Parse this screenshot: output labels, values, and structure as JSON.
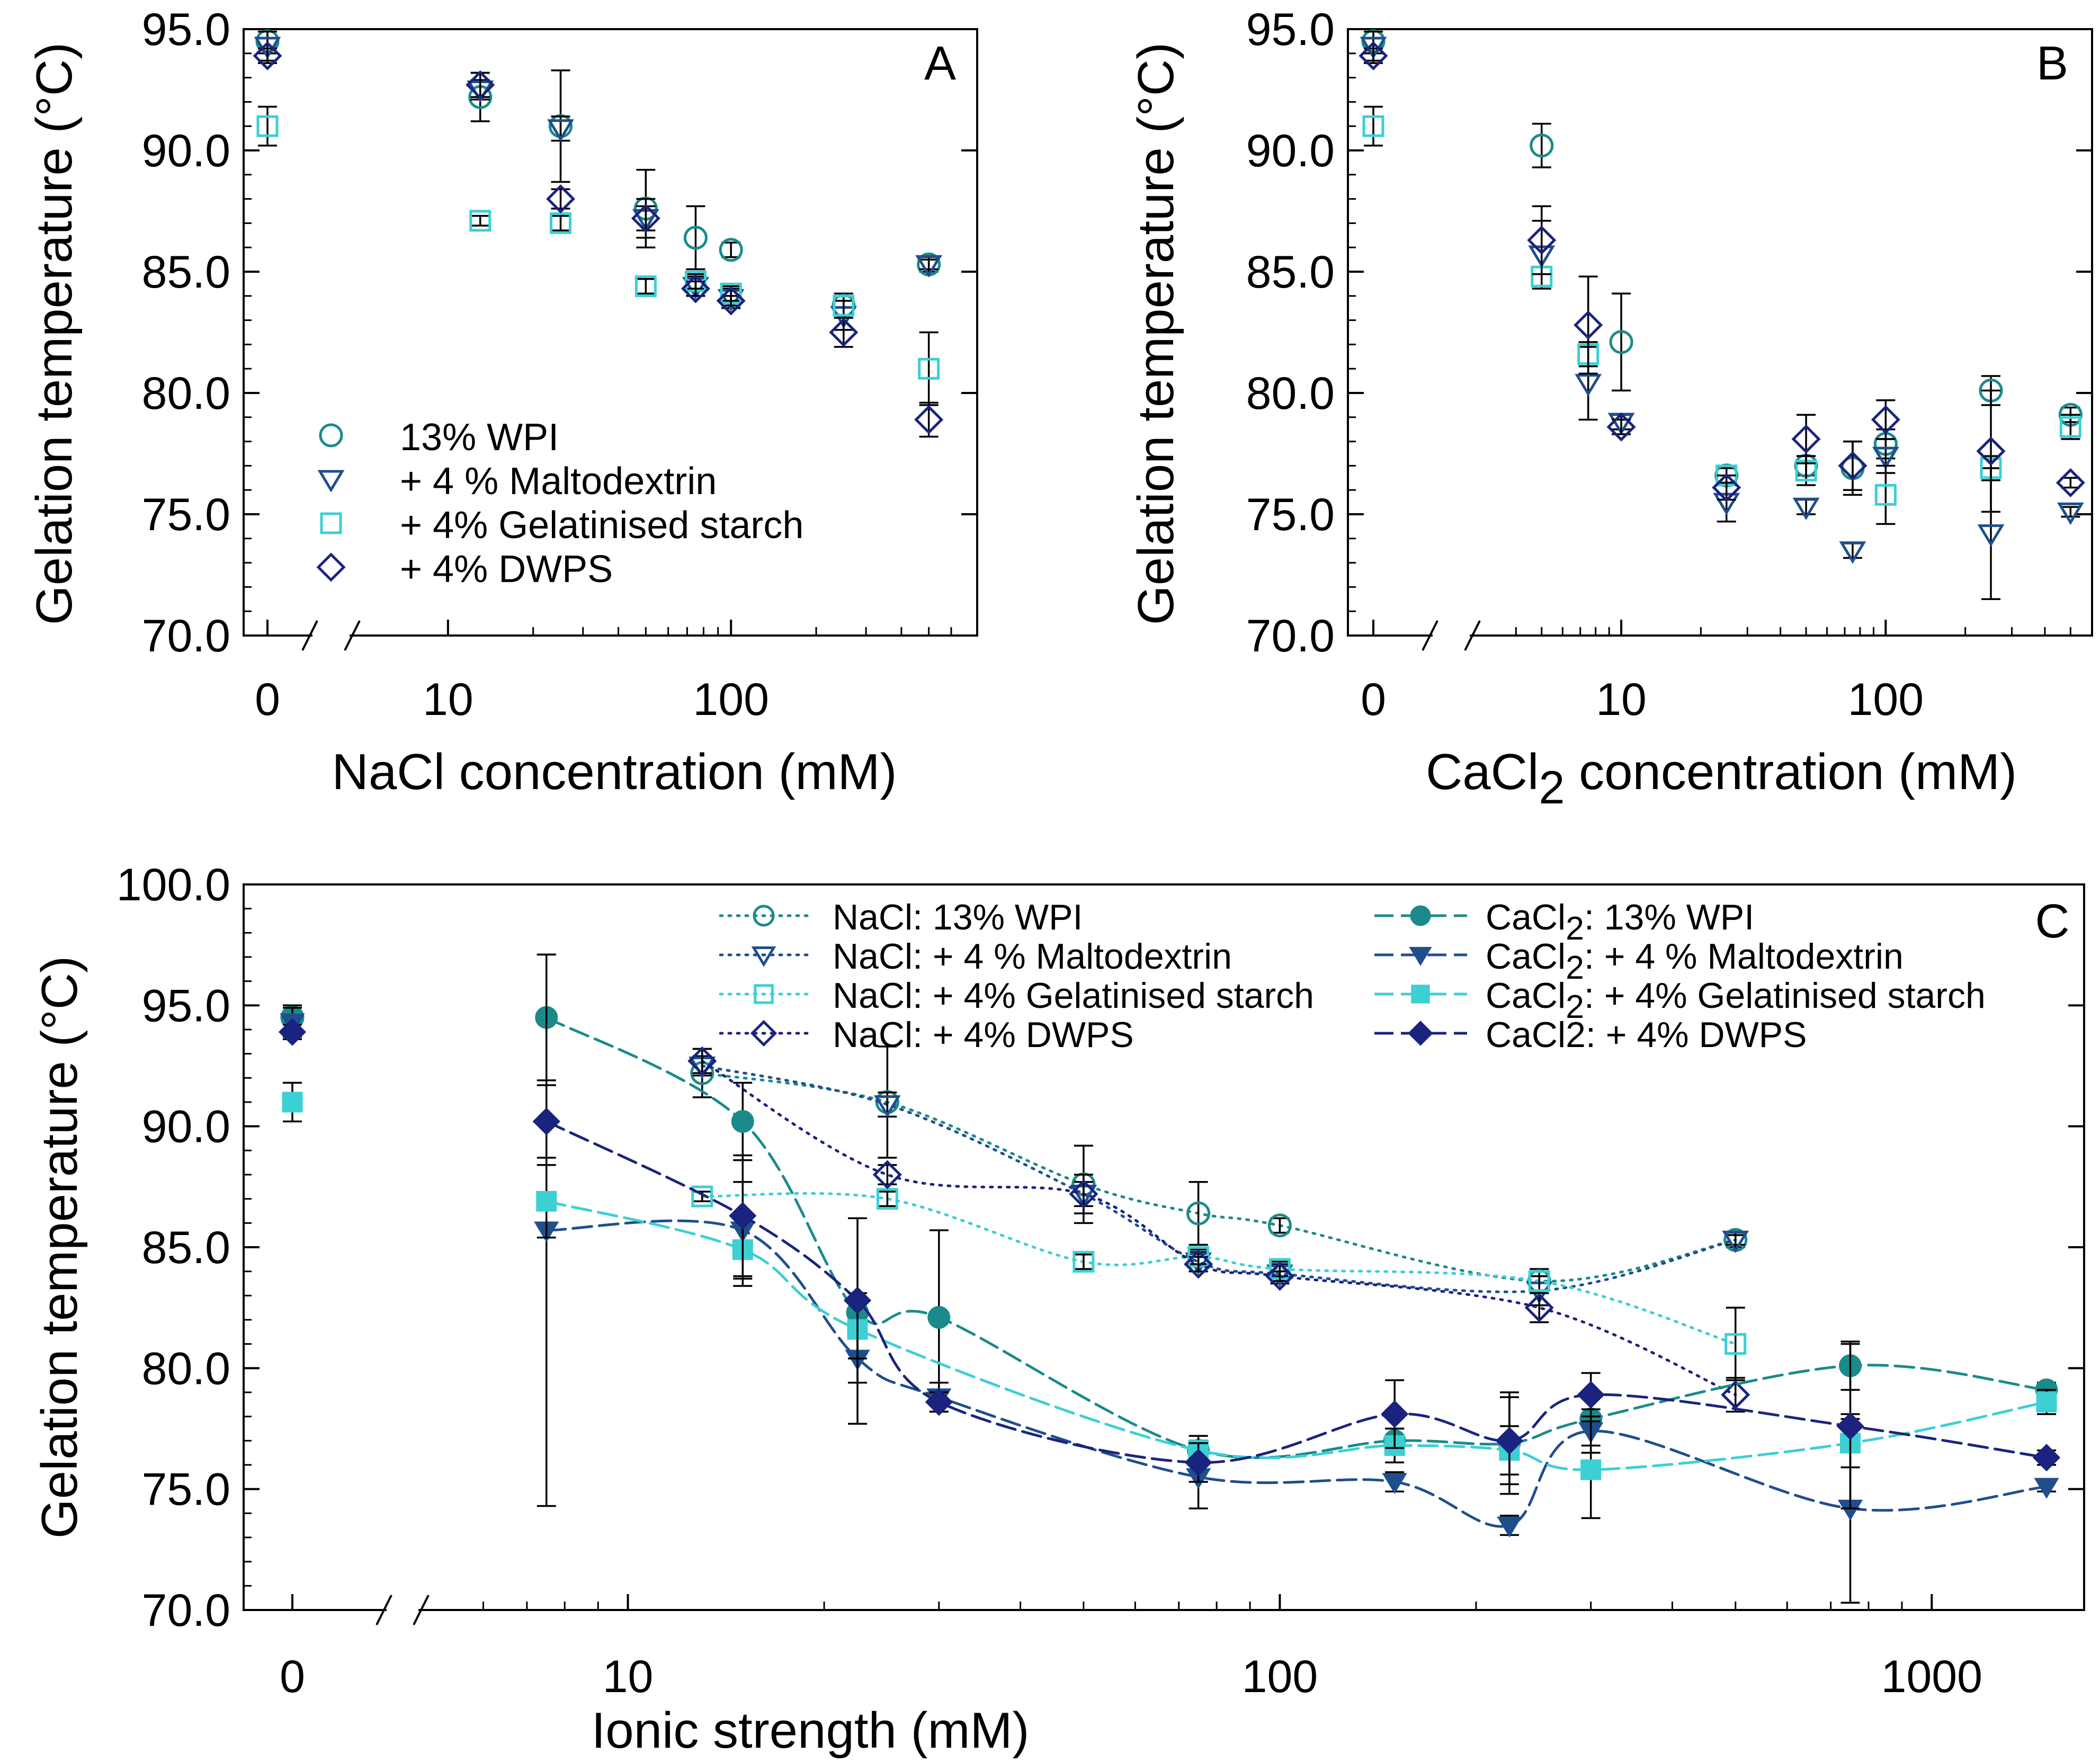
{
  "colors": {
    "teal": "#1b8a8a",
    "navy_blue": "#1f4e8c",
    "cyan": "#3ccfd4",
    "dark_navy": "#1a237e"
  },
  "chart_data": [
    {
      "type": "scatter",
      "panel_label": "A",
      "xlabel": "NaCl concentration (mM)",
      "ylabel": "Gelation temperature (°C)",
      "xscale": "log with break at 0",
      "xlim": [
        5,
        680
      ],
      "ylim": [
        70,
        95
      ],
      "yticks": [
        "70.0",
        "75.0",
        "80.0",
        "85.0",
        "90.0",
        "95.0"
      ],
      "xticks": [
        "0",
        "10",
        "100"
      ],
      "legend_position": "bottom-left",
      "series": [
        {
          "name": "13% WPI",
          "marker": "circle-open",
          "color": "teal",
          "points": [
            [
              0,
              94.5,
              0.5
            ],
            [
              13,
              92.2,
              1.0
            ],
            [
              25,
              91.0,
              2.3
            ],
            [
              50,
              87.6,
              1.6
            ],
            [
              75,
              86.4,
              1.3
            ],
            [
              100,
              85.9,
              0.3
            ],
            [
              250,
              83.6,
              0.5
            ],
            [
              500,
              85.3,
              0.3
            ]
          ]
        },
        {
          "name": "+ 4 % Maltodextrin",
          "marker": "triangle-down-open",
          "color": "navy_blue",
          "points": [
            [
              0,
              94.3,
              0.6
            ],
            [
              13,
              92.5,
              0.4
            ],
            [
              25,
              90.9,
              0.5
            ],
            [
              50,
              87.2,
              0.5
            ],
            [
              75,
              84.4,
              0.4
            ],
            [
              100,
              83.9,
              0.4
            ],
            [
              250,
              83.2,
              0.6
            ],
            [
              500,
              85.3,
              0.2
            ]
          ]
        },
        {
          "name": "+ 4% Gelatinised starch",
          "marker": "square-open",
          "color": "cyan",
          "points": [
            [
              0,
              91.0,
              0.8
            ],
            [
              13,
              87.1,
              0.2
            ],
            [
              25,
              87.0,
              0.3
            ],
            [
              50,
              84.4,
              0.3
            ],
            [
              75,
              84.6,
              0.3
            ],
            [
              100,
              84.1,
              0.3
            ],
            [
              250,
              83.6,
              0.4
            ],
            [
              500,
              81.0,
              1.5
            ]
          ]
        },
        {
          "name": "+ 4% DWPS",
          "marker": "diamond-open",
          "color": "dark_navy",
          "points": [
            [
              0,
              93.9,
              0.3
            ],
            [
              13,
              92.7,
              0.5
            ],
            [
              25,
              88.0,
              0.4
            ],
            [
              50,
              87.2,
              0.8
            ],
            [
              75,
              84.3,
              0.3
            ],
            [
              100,
              83.8,
              0.2
            ],
            [
              250,
              82.5,
              0.6
            ],
            [
              500,
              78.9,
              0.7
            ]
          ]
        }
      ]
    },
    {
      "type": "scatter",
      "panel_label": "B",
      "xlabel_main": "CaCl",
      "xlabel_sub": "2",
      "xlabel_rest": " concentration (mM)",
      "ylabel": "Gelation temperature (°C)",
      "xscale": "log with break at 0",
      "xlim": [
        3,
        550
      ],
      "ylim": [
        70,
        95
      ],
      "yticks": [
        "70.0",
        "75.0",
        "80.0",
        "85.0",
        "90.0",
        "95.0"
      ],
      "xticks": [
        "0",
        "10",
        "100"
      ],
      "series": [
        {
          "name": "13% WPI",
          "marker": "circle-open",
          "color": "teal",
          "points": [
            [
              0,
              94.5,
              0.5
            ],
            [
              5,
              90.2,
              0.9
            ],
            [
              10,
              82.1,
              2.0
            ],
            [
              25,
              76.6,
              0.3
            ],
            [
              50,
              77.0,
              0.4
            ],
            [
              75,
              76.9,
              1.1
            ],
            [
              100,
              77.9,
              0.6
            ],
            [
              250,
              80.1,
              0.6
            ],
            [
              500,
              79.1,
              0.3
            ]
          ]
        },
        {
          "name": "+ 4 % Maltodextrin",
          "marker": "triangle-down-open",
          "color": "navy_blue",
          "points": [
            [
              0,
              94.3,
              0.6
            ],
            [
              5,
              85.7,
              1.4
            ],
            [
              7.5,
              80.4,
              1.5
            ],
            [
              10,
              78.8,
              0.3
            ],
            [
              25,
              75.5,
              0.8
            ],
            [
              50,
              75.3,
              0.3
            ],
            [
              75,
              73.5,
              0.3
            ],
            [
              100,
              77.4,
              0.7
            ],
            [
              250,
              74.2,
              2.7
            ],
            [
              500,
              75.1,
              0.2
            ]
          ]
        },
        {
          "name": "+ 4% Gelatinised starch",
          "marker": "square-open",
          "color": "cyan",
          "points": [
            [
              0,
              91.0,
              0.8
            ],
            [
              5,
              84.8,
              0.4
            ],
            [
              7.5,
              81.6,
              0.5
            ],
            [
              25,
              76.6,
              0.4
            ],
            [
              50,
              76.8,
              0.6
            ],
            [
              100,
              75.8,
              1.2
            ],
            [
              250,
              76.9,
              0.5
            ],
            [
              500,
              78.6,
              0.5
            ]
          ]
        },
        {
          "name": "+ 4% DWPS",
          "marker": "diamond-open",
          "color": "dark_navy",
          "points": [
            [
              0,
              93.9,
              0.3
            ],
            [
              5,
              86.3,
              1.4
            ],
            [
              7.5,
              82.8,
              2.0
            ],
            [
              10,
              78.6,
              0.3
            ],
            [
              25,
              76.1,
              0.5
            ],
            [
              50,
              78.1,
              1.0
            ],
            [
              75,
              77.0,
              1.0
            ],
            [
              100,
              78.9,
              0.8
            ],
            [
              250,
              77.6,
              2.5
            ],
            [
              500,
              76.3,
              0.2
            ]
          ]
        }
      ]
    },
    {
      "type": "line",
      "panel_label": "C",
      "xlabel": "Ionic strength (mM)",
      "ylabel": "Gelation temperature (°C)",
      "xscale": "log with break at 0",
      "xlim": [
        5,
        1650
      ],
      "ylim": [
        70,
        100
      ],
      "yticks": [
        "70.0",
        "75.0",
        "80.0",
        "85.0",
        "90.0",
        "95.0",
        "100.0"
      ],
      "xticks": [
        "0",
        "10",
        "100",
        "1000"
      ],
      "legend_position": "top",
      "nacl_prefix": "NaCl: ",
      "cacl_prefix": "CaCl",
      "cacl_sub": "2",
      "cacl_sep": ": ",
      "cacl_dwps_label": "CaCl2: + 4% DWPS",
      "series": [
        {
          "name": "13% WPI",
          "salt": "NaCl",
          "marker": "circle-open",
          "color": "teal",
          "dash": "dotted",
          "points": [
            [
              0,
              94.5,
              0.5
            ],
            [
              13,
              92.2,
              1.0
            ],
            [
              25,
              91.0,
              2.3
            ],
            [
              50,
              87.6,
              1.6
            ],
            [
              75,
              86.4,
              1.3
            ],
            [
              100,
              85.9,
              0.3
            ],
            [
              250,
              83.6,
              0.5
            ],
            [
              500,
              85.3,
              0.3
            ]
          ]
        },
        {
          "name": "+ 4 % Maltodextrin",
          "salt": "NaCl",
          "marker": "triangle-down-open",
          "color": "navy_blue",
          "dash": "dotted",
          "points": [
            [
              13,
              92.5,
              0.4
            ],
            [
              25,
              90.9,
              0.5
            ],
            [
              50,
              87.2,
              0.5
            ],
            [
              75,
              84.4,
              0.4
            ],
            [
              100,
              83.9,
              0.4
            ],
            [
              250,
              83.2,
              0.6
            ],
            [
              500,
              85.3,
              0.2
            ]
          ]
        },
        {
          "name": "+ 4% Gelatinised starch",
          "salt": "NaCl",
          "marker": "square-open",
          "color": "cyan",
          "dash": "dotted",
          "points": [
            [
              13,
              87.1,
              0.2
            ],
            [
              25,
              87.0,
              0.3
            ],
            [
              50,
              84.4,
              0.3
            ],
            [
              75,
              84.6,
              0.3
            ],
            [
              100,
              84.1,
              0.3
            ],
            [
              250,
              83.6,
              0.4
            ],
            [
              500,
              81.0,
              1.5
            ]
          ]
        },
        {
          "name": "+ 4% DWPS",
          "salt": "NaCl",
          "marker": "diamond-open",
          "color": "dark_navy",
          "dash": "dotted",
          "points": [
            [
              13,
              92.7,
              0.5
            ],
            [
              25,
              88.0,
              0.4
            ],
            [
              50,
              87.2,
              0.8
            ],
            [
              75,
              84.3,
              0.3
            ],
            [
              100,
              83.8,
              0.2
            ],
            [
              250,
              82.5,
              0.6
            ],
            [
              500,
              78.9,
              0.7
            ]
          ]
        },
        {
          "name": "13% WPI",
          "salt": "CaCl2",
          "marker": "circle-filled",
          "color": "teal",
          "dash": "dashed",
          "points": [
            [
              0,
              94.5,
              0.5
            ],
            [
              7.5,
              94.5,
              2.6
            ],
            [
              15,
              90.2,
              1.6
            ],
            [
              22.5,
              82.3,
              0.5
            ],
            [
              30,
              82.1,
              3.6
            ],
            [
              75,
              76.6,
              0.4
            ],
            [
              150,
              77.0,
              0.5
            ],
            [
              225,
              76.9,
              2.1
            ],
            [
              300,
              77.9,
              1.1
            ],
            [
              750,
              80.1,
              1.0
            ],
            [
              1500,
              79.1,
              0.3
            ]
          ]
        },
        {
          "name": "+ 4 % Maltodextrin",
          "salt": "CaCl2",
          "marker": "triangle-down-filled",
          "color": "navy_blue",
          "dash": "dashed",
          "points": [
            [
              0,
              94.3,
              0.6
            ],
            [
              7.5,
              85.7,
              11.4
            ],
            [
              15,
              85.7,
              2.0
            ],
            [
              22.5,
              80.4,
              2.7
            ],
            [
              30,
              78.8,
              0.6
            ],
            [
              75,
              75.5,
              1.3
            ],
            [
              150,
              75.3,
              0.4
            ],
            [
              225,
              73.5,
              0.4
            ],
            [
              300,
              77.4,
              0.9
            ],
            [
              750,
              74.2,
              3.9
            ],
            [
              1500,
              75.1,
              0.2
            ]
          ]
        },
        {
          "name": "+ 4% Gelatinised starch",
          "salt": "CaCl2",
          "marker": "square-filled",
          "color": "cyan",
          "dash": "dashed",
          "points": [
            [
              0,
              91.0,
              0.8
            ],
            [
              7.5,
              86.9,
              1.5
            ],
            [
              15,
              84.9,
              1.5
            ],
            [
              22.5,
              81.6,
              1.2
            ],
            [
              75,
              76.6,
              0.6
            ],
            [
              150,
              76.8,
              0.7
            ],
            [
              225,
              76.6,
              1.0
            ],
            [
              300,
              75.8,
              2.0
            ],
            [
              750,
              76.9,
              1.0
            ],
            [
              1500,
              78.6,
              0.5
            ]
          ]
        },
        {
          "name": "+ 4% DWPS",
          "salt": "CaCl2",
          "marker": "diamond-filled",
          "color": "dark_navy",
          "dash": "dashed",
          "points": [
            [
              0,
              93.9,
              0.3
            ],
            [
              7.5,
              90.2,
              1.5
            ],
            [
              15,
              86.3,
              2.5
            ],
            [
              22.5,
              82.8,
              3.4
            ],
            [
              30,
              78.6,
              0.4
            ],
            [
              75,
              76.1,
              0.8
            ],
            [
              150,
              78.1,
              1.4
            ],
            [
              225,
              77.0,
              1.8
            ],
            [
              300,
              78.9,
              0.9
            ],
            [
              750,
              77.6,
              3.4
            ],
            [
              1500,
              76.3,
              0.3
            ]
          ]
        }
      ]
    }
  ]
}
